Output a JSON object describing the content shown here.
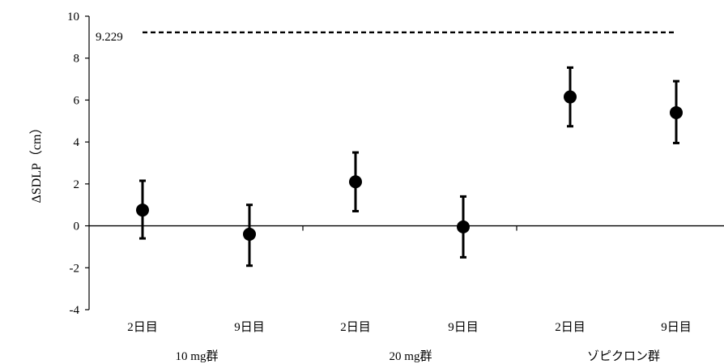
{
  "chart_data": {
    "type": "scatter",
    "ylabel": "ΔSDLP（cm）",
    "ylim": [
      -4,
      10
    ],
    "yticks": [
      -4,
      -2,
      0,
      2,
      4,
      6,
      8,
      10
    ],
    "ytick_labels": [
      "-4",
      "-2",
      "0",
      "2",
      "4",
      "6",
      "8",
      "10"
    ],
    "grid": false,
    "categories": [
      "2日目",
      "9日目",
      "2日目",
      "9日目",
      "2日目",
      "9日目"
    ],
    "groups": [
      {
        "label": "10 mg群",
        "span": [
          0,
          1
        ]
      },
      {
        "label": "20 mg群",
        "span": [
          2,
          3
        ]
      },
      {
        "label": "ゾピクロン群",
        "span": [
          4,
          5
        ]
      }
    ],
    "points": [
      {
        "y": 0.75,
        "low": -0.6,
        "high": 2.15
      },
      {
        "y": -0.4,
        "low": -1.9,
        "high": 1.0
      },
      {
        "y": 2.1,
        "low": 0.7,
        "high": 3.5
      },
      {
        "y": -0.05,
        "low": -1.5,
        "high": 1.4
      },
      {
        "y": 6.15,
        "low": 4.75,
        "high": 7.55
      },
      {
        "y": 5.4,
        "low": 3.95,
        "high": 6.9
      }
    ],
    "reference_line": {
      "value": 9.229,
      "label": "9.229",
      "style": "dashed"
    }
  }
}
